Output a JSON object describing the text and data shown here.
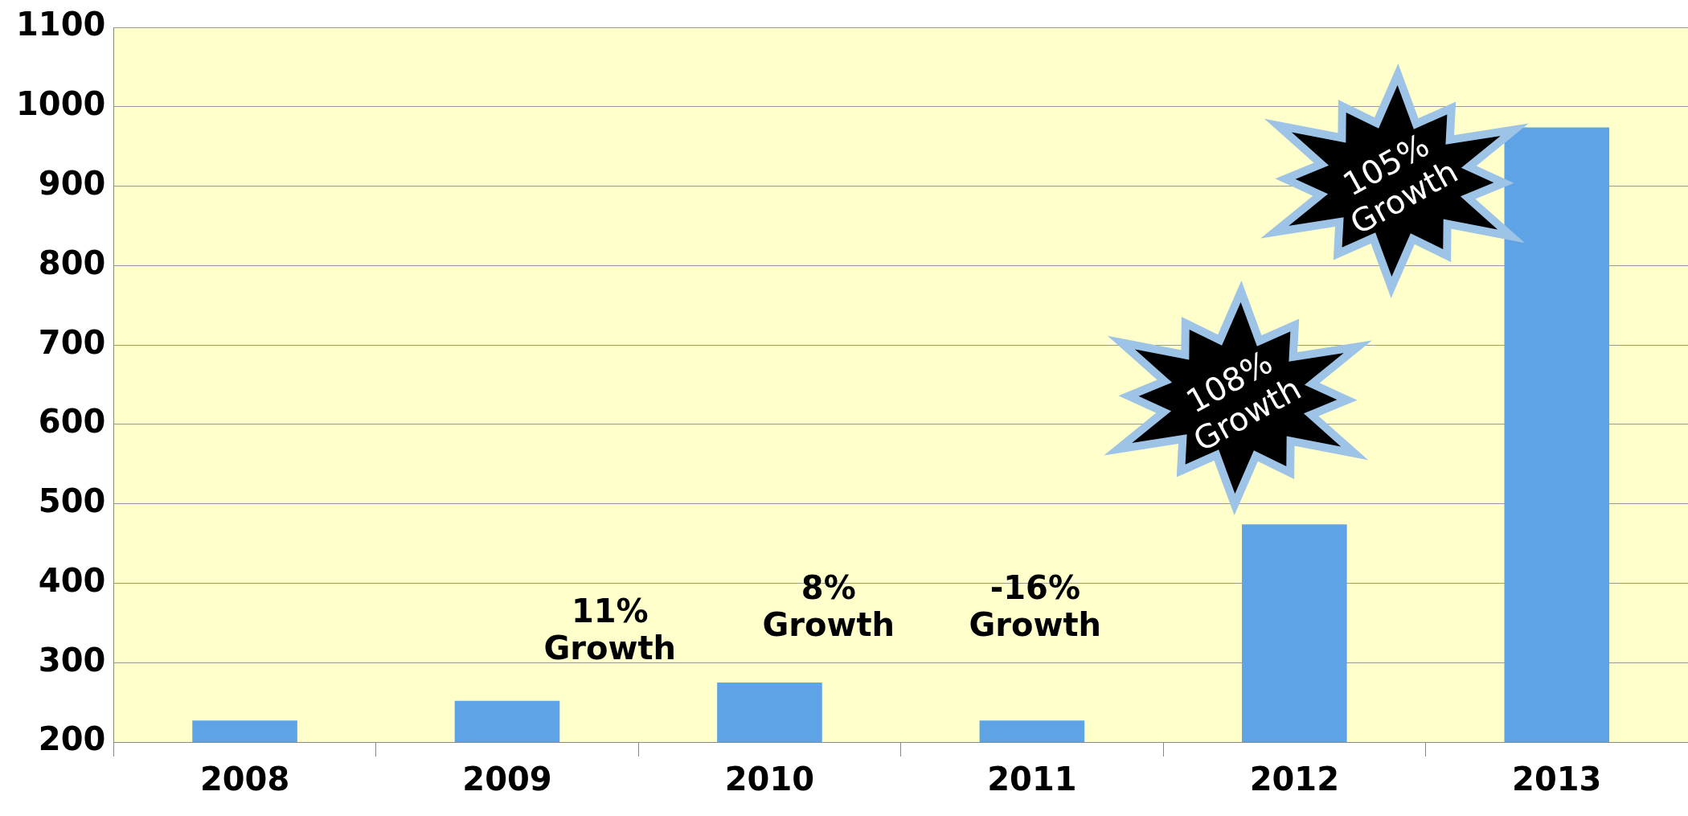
{
  "chart_data": {
    "type": "bar",
    "categories": [
      "2008",
      "2009",
      "2010",
      "2011",
      "2012",
      "2013"
    ],
    "values": [
      227,
      252,
      275,
      227,
      474,
      974
    ],
    "color": "#5ea3e6",
    "ylim": [
      200,
      1100
    ],
    "yticks": [
      200,
      300,
      400,
      500,
      600,
      700,
      800,
      900,
      1000,
      1100
    ],
    "grid": "y",
    "annotations": [
      "11%\nGrowth",
      "8%\nGrowth",
      "-16%\nGrowth",
      "108%\nGrowth",
      "105%\nGrowth"
    ]
  }
}
